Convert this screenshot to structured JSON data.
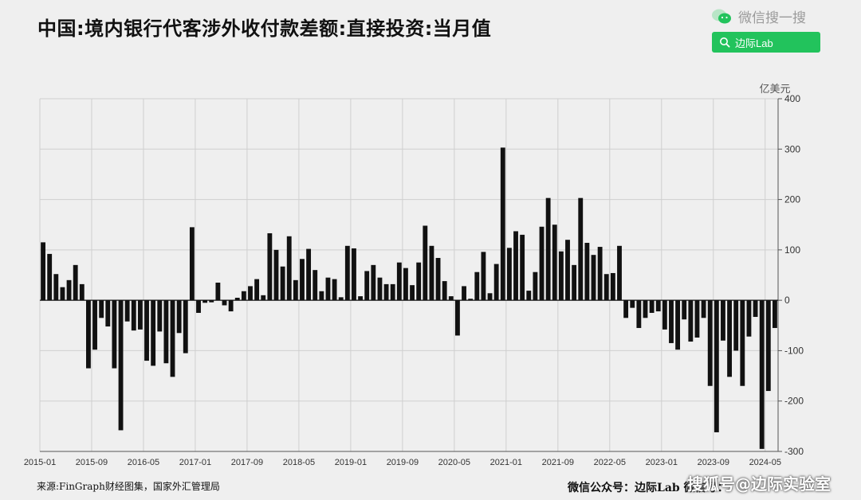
{
  "header": {
    "title": "中国:境内银行代客涉外收付款差额:直接投资:当月值"
  },
  "wechat": {
    "search_label": "微信搜一搜",
    "button_label": "边际Lab",
    "brand_color": "#22c35c"
  },
  "footer": {
    "source": "来源:FinGraph财经图集，国家外汇管理局",
    "account": "微信公众号：边际Lab  微信号：",
    "watermark": "搜狐号@边际实验室"
  },
  "chart_data": {
    "type": "bar",
    "unit": "亿美元",
    "ylim": [
      -300,
      400
    ],
    "yticks": [
      400,
      300,
      200,
      100,
      0,
      -100,
      -200,
      -300
    ],
    "xtick_labels": [
      "2015-01",
      "2015-09",
      "2016-05",
      "2017-01",
      "2017-09",
      "2018-05",
      "2019-01",
      "2019-09",
      "2020-05",
      "2021-01",
      "2021-09",
      "2022-05",
      "2023-01",
      "2023-09",
      "2024-05"
    ],
    "start": "2015-01",
    "end": "2024-06",
    "bar_color": "#111111",
    "grid": true,
    "x": [
      "2015-01",
      "2015-02",
      "2015-03",
      "2015-04",
      "2015-05",
      "2015-06",
      "2015-07",
      "2015-08",
      "2015-09",
      "2015-10",
      "2015-11",
      "2015-12",
      "2016-01",
      "2016-02",
      "2016-03",
      "2016-04",
      "2016-05",
      "2016-06",
      "2016-07",
      "2016-08",
      "2016-09",
      "2016-10",
      "2016-11",
      "2016-12",
      "2017-01",
      "2017-02",
      "2017-03",
      "2017-04",
      "2017-05",
      "2017-06",
      "2017-07",
      "2017-08",
      "2017-09",
      "2017-10",
      "2017-11",
      "2017-12",
      "2018-01",
      "2018-02",
      "2018-03",
      "2018-04",
      "2018-05",
      "2018-06",
      "2018-07",
      "2018-08",
      "2018-09",
      "2018-10",
      "2018-11",
      "2018-12",
      "2019-01",
      "2019-02",
      "2019-03",
      "2019-04",
      "2019-05",
      "2019-06",
      "2019-07",
      "2019-08",
      "2019-09",
      "2019-10",
      "2019-11",
      "2019-12",
      "2020-01",
      "2020-02",
      "2020-03",
      "2020-04",
      "2020-05",
      "2020-06",
      "2020-07",
      "2020-08",
      "2020-09",
      "2020-10",
      "2020-11",
      "2020-12",
      "2021-01",
      "2021-02",
      "2021-03",
      "2021-04",
      "2021-05",
      "2021-06",
      "2021-07",
      "2021-08",
      "2021-09",
      "2021-10",
      "2021-11",
      "2021-12",
      "2022-01",
      "2022-02",
      "2022-03",
      "2022-04",
      "2022-05",
      "2022-06",
      "2022-07",
      "2022-08",
      "2022-09",
      "2022-10",
      "2022-11",
      "2022-12",
      "2023-01",
      "2023-02",
      "2023-03",
      "2023-04",
      "2023-05",
      "2023-06",
      "2023-07",
      "2023-08",
      "2023-09",
      "2023-10",
      "2023-11",
      "2023-12",
      "2024-01",
      "2024-02",
      "2024-03",
      "2024-04",
      "2024-05",
      "2024-06"
    ],
    "values": [
      115,
      92,
      52,
      26,
      40,
      70,
      32,
      -135,
      -98,
      -35,
      -52,
      -135,
      -258,
      -42,
      -60,
      -58,
      -120,
      -130,
      -62,
      -125,
      -152,
      -65,
      -105,
      145,
      -25,
      -5,
      -4,
      35,
      -10,
      -22,
      5,
      18,
      28,
      42,
      10,
      133,
      100,
      67,
      127,
      40,
      82,
      102,
      60,
      18,
      45,
      42,
      6,
      108,
      103,
      8,
      58,
      70,
      45,
      32,
      32,
      75,
      64,
      30,
      75,
      148,
      108,
      84,
      38,
      8,
      -70,
      28,
      3,
      56,
      96,
      14,
      72,
      303,
      104,
      137,
      130,
      19,
      56,
      146,
      203,
      150,
      97,
      120,
      70,
      203,
      114,
      90,
      106,
      52,
      54,
      108,
      -35,
      -15,
      -55,
      -35,
      -25,
      -22,
      -58,
      -85,
      -98,
      -38,
      -82,
      -74,
      -35,
      -170,
      -262,
      -80,
      -152,
      -100,
      -170,
      -72,
      -33,
      -295,
      -180,
      -55
    ]
  }
}
